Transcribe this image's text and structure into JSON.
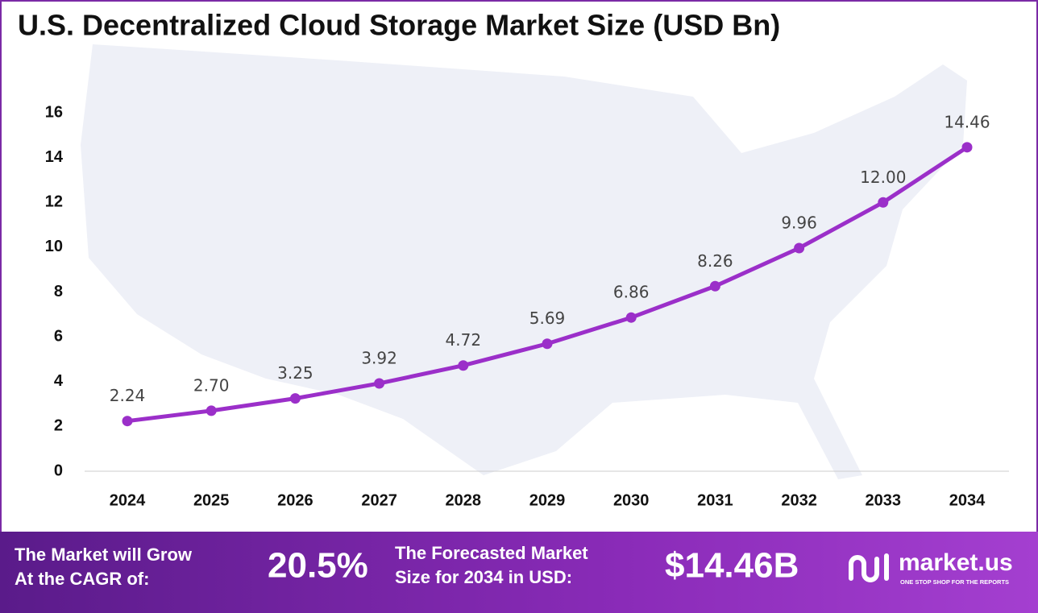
{
  "chart_data": {
    "type": "line",
    "title": "U.S. Decentralized Cloud Storage Market Size (USD Bn)",
    "categories": [
      "2024",
      "2025",
      "2026",
      "2027",
      "2028",
      "2029",
      "2030",
      "2031",
      "2032",
      "2033",
      "2034"
    ],
    "values": [
      2.24,
      2.7,
      3.25,
      3.92,
      4.72,
      5.69,
      6.86,
      8.26,
      9.96,
      12.0,
      14.46
    ],
    "value_labels": [
      "2.24",
      "2.70",
      "3.25",
      "3.92",
      "4.72",
      "5.69",
      "6.86",
      "8.26",
      "9.96",
      "12.00",
      "14.46"
    ],
    "color": "#9b2fc9",
    "ylim": [
      0,
      16
    ],
    "yticks": [
      0,
      2,
      4,
      6,
      8,
      10,
      12,
      14,
      16
    ],
    "grid": false
  },
  "footer": {
    "cagr_label": [
      "The Market will Grow",
      "At the CAGR of:"
    ],
    "cagr": "20.5%",
    "forecast_label": [
      "The Forecasted Market",
      "Size for 2034 in USD:"
    ],
    "forecast": "$14.46B",
    "brand": "market.us",
    "tagline": "ONE STOP SHOP FOR THE REPORTS"
  }
}
